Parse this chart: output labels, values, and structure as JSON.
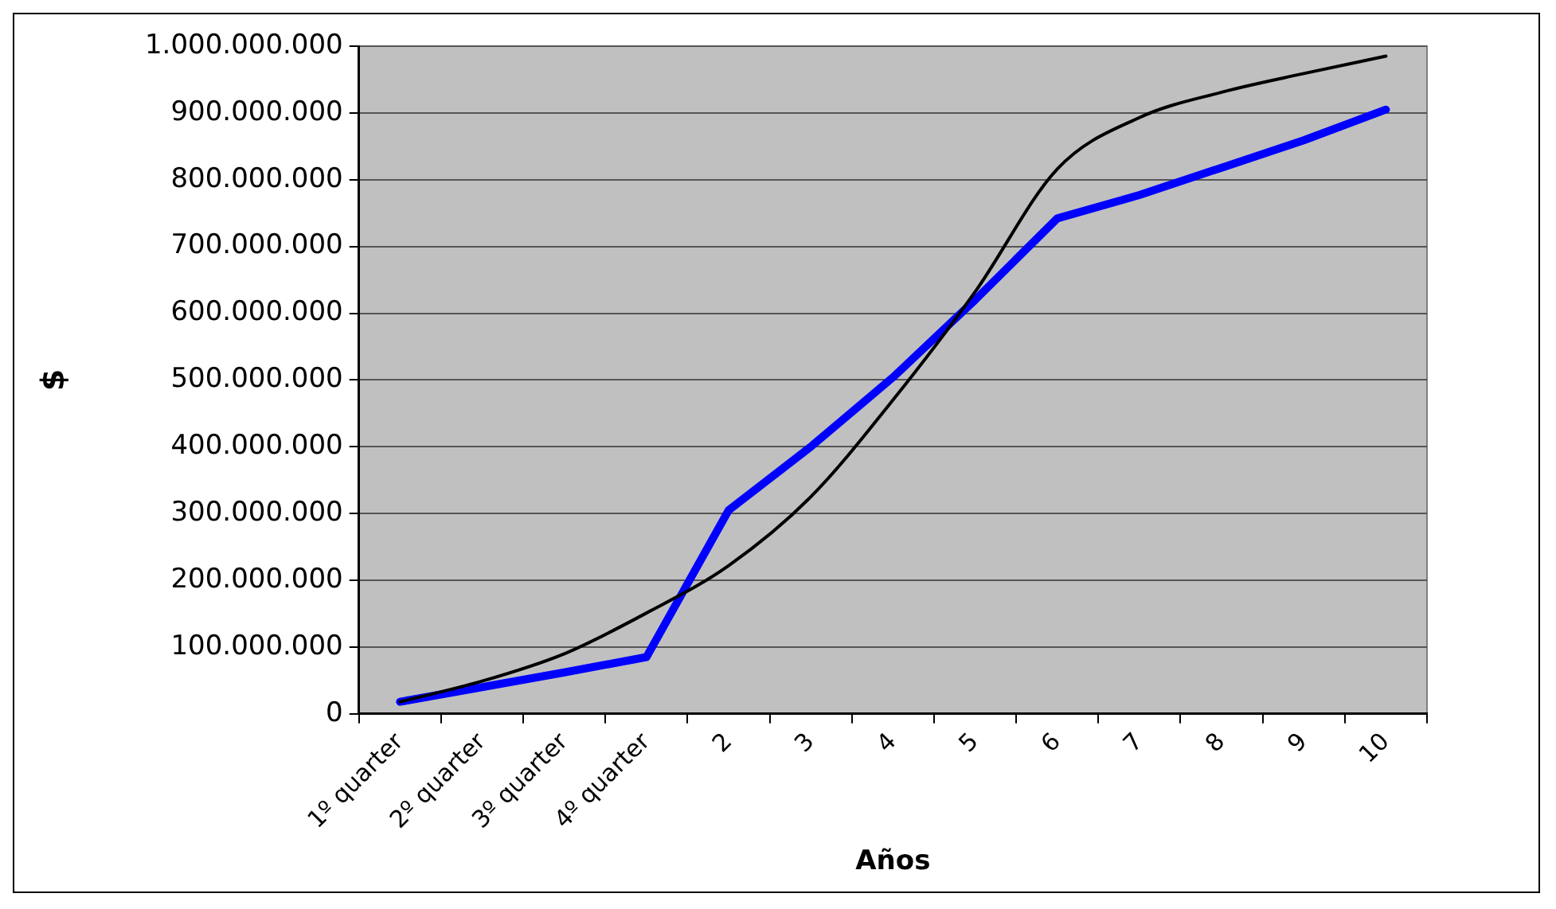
{
  "chart_data": {
    "type": "line",
    "xlabel": "Años",
    "ylabel": "$",
    "categories": [
      "1º quarter",
      "2º quarter",
      "3º quarter",
      "4º quarter",
      "2",
      "3",
      "4",
      "5",
      "6",
      "7",
      "8",
      "9",
      "10"
    ],
    "series": [
      {
        "color": "#000000",
        "values": [
          18000000,
          49000000,
          90000000,
          151000000,
          222000000,
          325000000,
          470000000,
          632000000,
          816000000,
          893000000,
          931000000,
          959000000,
          985000000
        ]
      },
      {
        "color": "#0000ff",
        "values": [
          18000000,
          40000000,
          62000000,
          85000000,
          305000000,
          400000000,
          504000000,
          620000000,
          742000000,
          777000000,
          818000000,
          859000000,
          905000000
        ]
      }
    ],
    "ylim": [
      0,
      1000000000
    ],
    "yticks": [
      {
        "value": 0,
        "label": "0"
      },
      {
        "value": 100000000,
        "label": "100.000.000"
      },
      {
        "value": 200000000,
        "label": "200.000.000"
      },
      {
        "value": 300000000,
        "label": "300.000.000"
      },
      {
        "value": 400000000,
        "label": "400.000.000"
      },
      {
        "value": 500000000,
        "label": "500.000.000"
      },
      {
        "value": 600000000,
        "label": "600.000.000"
      },
      {
        "value": 700000000,
        "label": "700.000.000"
      },
      {
        "value": 800000000,
        "label": "800.000.000"
      },
      {
        "value": 900000000,
        "label": "900.000.000"
      },
      {
        "value": 1000000000,
        "label": "1.000.000.000"
      }
    ],
    "grid": "y",
    "legend": false,
    "marker": "none"
  }
}
